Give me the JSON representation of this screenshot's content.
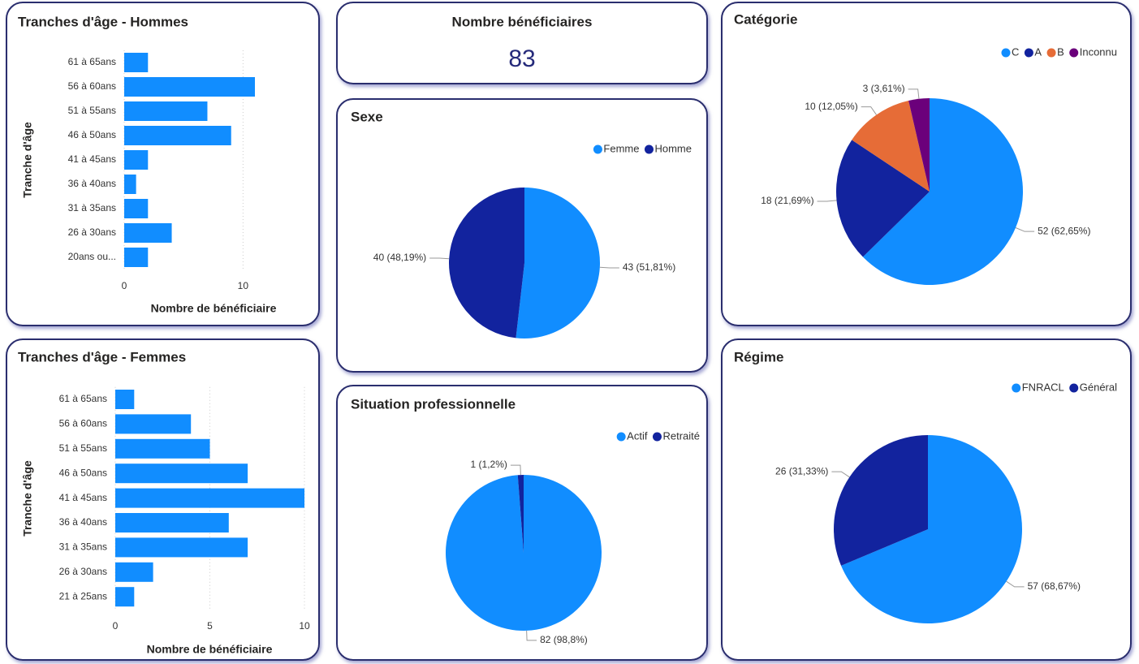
{
  "card": {
    "title": "Nombre bénéficiaires",
    "value": 83
  },
  "chart_data": [
    {
      "type": "bar",
      "orientation": "horizontal",
      "title": "Tranches d'âge - Hommes",
      "xlabel": "Nombre de bénéficiaire",
      "ylabel": "Tranche d'âge",
      "categories": [
        "61 à 65ans",
        "56 à 60ans",
        "51 à 55ans",
        "46 à 50ans",
        "41 à 45ans",
        "36 à 40ans",
        "31 à 35ans",
        "26 à 30ans",
        "20ans ou..."
      ],
      "values": [
        2,
        11,
        7,
        9,
        2,
        1,
        2,
        4,
        2
      ],
      "color": "#118DFF",
      "xlim": [
        0,
        11
      ],
      "xticks": [
        0,
        10
      ],
      "grid": true
    },
    {
      "type": "bar",
      "orientation": "horizontal",
      "title": "Tranches d'âge - Femmes",
      "xlabel": "Nombre de bénéficiaire",
      "ylabel": "Tranche d'âge",
      "categories": [
        "61 à 65ans",
        "56 à 60ans",
        "51 à 55ans",
        "46 à 50ans",
        "41 à 45ans",
        "36 à 40ans",
        "31 à 35ans",
        "26 à 30ans",
        "21 à 25ans"
      ],
      "values": [
        1,
        4,
        5,
        7,
        10,
        6,
        7,
        2,
        1
      ],
      "color": "#118DFF",
      "xlim": [
        0,
        10
      ],
      "xticks": [
        0,
        5,
        10
      ],
      "grid": true
    },
    {
      "type": "pie",
      "title": "Sexe",
      "categories": [
        "Femme",
        "Homme"
      ],
      "values": [
        43,
        40
      ],
      "value_labels": [
        "43 (51,81%)",
        "40 (48,19%)"
      ],
      "colors": [
        "#118DFF",
        "#12239E"
      ],
      "legend": "top-right"
    },
    {
      "type": "pie",
      "title": "Situation professionnelle",
      "categories": [
        "Actif",
        "Retraité"
      ],
      "values": [
        82,
        1
      ],
      "value_labels": [
        "82 (98,8%)",
        "1 (1,2%)"
      ],
      "colors": [
        "#118DFF",
        "#12239E"
      ],
      "legend": "top-right"
    },
    {
      "type": "pie",
      "title": "Catégorie",
      "categories": [
        "C",
        "A",
        "B",
        "Inconnu"
      ],
      "values": [
        52,
        18,
        10,
        3
      ],
      "value_labels": [
        "52 (62,65%)",
        "18 (21,69%)",
        "10 (12,05%)",
        "3 (3,61%)"
      ],
      "colors": [
        "#118DFF",
        "#12239E",
        "#E66C37",
        "#6B007B"
      ],
      "legend": "top-right"
    },
    {
      "type": "pie",
      "title": "Régime",
      "categories": [
        "FNRACL",
        "Général"
      ],
      "values": [
        57,
        26
      ],
      "value_labels": [
        "57 (68,67%)",
        "26 (31,33%)"
      ],
      "colors": [
        "#118DFF",
        "#12239E"
      ],
      "legend": "top-right"
    }
  ]
}
